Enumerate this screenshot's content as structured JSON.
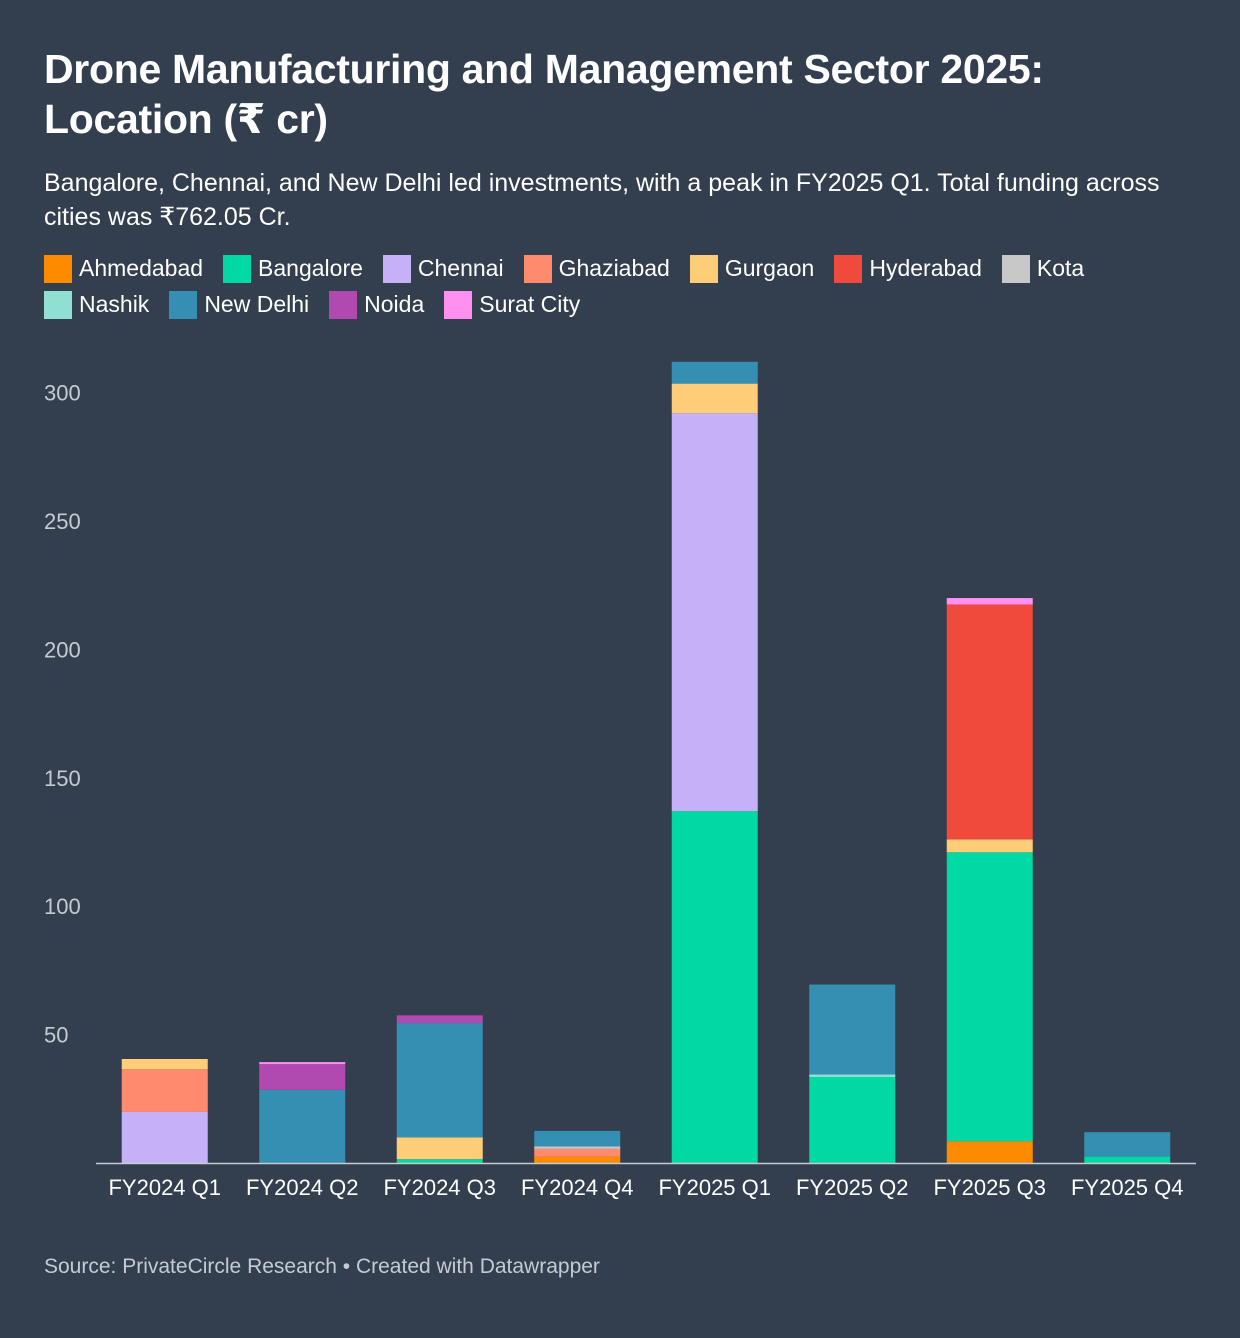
{
  "header": {
    "title": "Drone Manufacturing and Management Sector 2025: Location (₹ cr)",
    "subtitle": "Bangalore, Chennai, and New Delhi led investments, with a peak in FY2025 Q1. Total funding across cities was ₹762.05 Cr."
  },
  "legend": [
    {
      "name": "Ahmedabad",
      "color": "#fb8c00"
    },
    {
      "name": "Bangalore",
      "color": "#00d9a4"
    },
    {
      "name": "Chennai",
      "color": "#c5b1f8"
    },
    {
      "name": "Ghaziabad",
      "color": "#ff8a6e"
    },
    {
      "name": "Gurgaon",
      "color": "#ffcc77"
    },
    {
      "name": "Hyderabad",
      "color": "#ef4a3c"
    },
    {
      "name": "Kota",
      "color": "#c8c8c8"
    },
    {
      "name": "Nashik",
      "color": "#8fe0d3"
    },
    {
      "name": "New Delhi",
      "color": "#348fb2"
    },
    {
      "name": "Noida",
      "color": "#b04ab0"
    },
    {
      "name": "Surat City",
      "color": "#ff90f0"
    }
  ],
  "chart_data": {
    "type": "bar",
    "stacked": true,
    "title": "Drone Manufacturing and Management Sector 2025: Location (₹ cr)",
    "xlabel": "",
    "ylabel": "",
    "ylim": [
      0,
      310
    ],
    "yticks": [
      50,
      100,
      150,
      200,
      250,
      300
    ],
    "grid": false,
    "categories": [
      "FY2024 Q1",
      "FY2024 Q2",
      "FY2024 Q3",
      "FY2024 Q4",
      "FY2025 Q1",
      "FY2025 Q2",
      "FY2025 Q3",
      "FY2025 Q4"
    ],
    "series": [
      {
        "name": "Ahmedabad",
        "color": "#fb8c00",
        "values": [
          0,
          0,
          0,
          2.5,
          0,
          0,
          8.5,
          0
        ]
      },
      {
        "name": "Bangalore",
        "color": "#00d9a4",
        "values": [
          0,
          0,
          1.5,
          0,
          137,
          33.5,
          112.5,
          2.5
        ]
      },
      {
        "name": "Chennai",
        "color": "#c5b1f8",
        "values": [
          20,
          0,
          0,
          0,
          155,
          0,
          0,
          0
        ]
      },
      {
        "name": "Ghaziabad",
        "color": "#ff8a6e",
        "values": [
          16.5,
          0,
          0,
          3,
          0,
          0,
          0,
          0
        ]
      },
      {
        "name": "Gurgaon",
        "color": "#ffcc77",
        "values": [
          4,
          0,
          8.5,
          0,
          11.5,
          0,
          5,
          0
        ]
      },
      {
        "name": "Hyderabad",
        "color": "#ef4a3c",
        "values": [
          0,
          0,
          0,
          0,
          0,
          0,
          91.5,
          0
        ]
      },
      {
        "name": "Kota",
        "color": "#c8c8c8",
        "values": [
          0,
          0,
          0,
          1,
          0,
          0,
          0,
          0
        ]
      },
      {
        "name": "Nashik",
        "color": "#8fe0d3",
        "values": [
          0,
          0,
          0,
          0,
          0,
          1,
          0,
          0
        ]
      },
      {
        "name": "New Delhi",
        "color": "#348fb2",
        "values": [
          0,
          28.5,
          44.5,
          6,
          8.5,
          35,
          0,
          9.5
        ]
      },
      {
        "name": "Noida",
        "color": "#b04ab0",
        "values": [
          0,
          10,
          3,
          0,
          0,
          0,
          0,
          0
        ]
      },
      {
        "name": "Surat City",
        "color": "#ff90f0",
        "values": [
          0,
          0.8,
          0,
          0,
          0,
          0,
          2.5,
          0
        ]
      }
    ]
  },
  "footer": {
    "source": "Source: PrivateCircle Research • Created with Datawrapper"
  }
}
